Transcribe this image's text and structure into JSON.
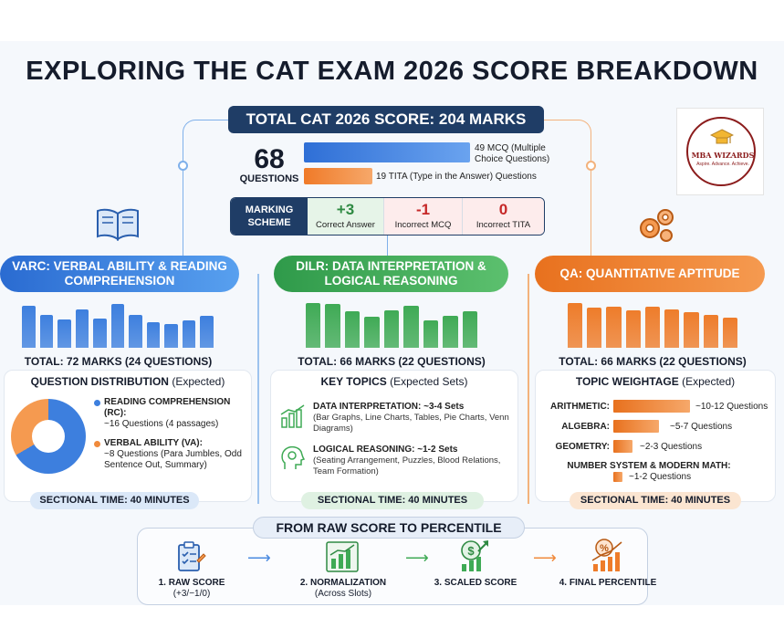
{
  "title": "EXPLORING THE CAT EXAM 2026 SCORE BREAKDOWN",
  "total": {
    "label": "TOTAL CAT 2026 SCORE: 204 MARKS",
    "question_count": "68",
    "question_label": "QUESTIONS",
    "mcq_text": "49 MCQ (Multiple Choice Questions)",
    "tita_text": "19 TITA (Type in the Answer) Questions",
    "mcq_count": 49,
    "tita_count": 19
  },
  "marking": {
    "head": "MARKING SCHEME",
    "correct": {
      "value": "+3",
      "label": "Correct Answer"
    },
    "incorrect_mcq": {
      "value": "-1",
      "label": "Incorrect MCQ"
    },
    "incorrect_tita": {
      "value": "0",
      "label": "Incorrect TITA"
    }
  },
  "logo": {
    "name": "MBA WIZARDS",
    "tagline": "Aspire. Advance. Achieve."
  },
  "varc": {
    "title": "VARC: VERBAL ABILITY & READING COMPREHENSION",
    "bar_levels": [
      0.92,
      0.72,
      0.62,
      0.84,
      0.64,
      0.95,
      0.72,
      0.55,
      0.52,
      0.6,
      0.7
    ],
    "total": "TOTAL: 72 MARKS (24 QUESTIONS)",
    "card_head": "QUESTION DISTRIBUTION",
    "card_note": "(Expected)",
    "donut_rc_fraction": 0.667,
    "rc_title": "READING COMPREHENSION (RC):",
    "rc_sub": "~16 Questions (4 passages)",
    "va_title": "VERBAL ABILITY (VA):",
    "va_sub": "~8 Questions (Para Jumbles, Odd Sentence Out, Summary)",
    "time": "SECTIONAL TIME: 40 MINUTES",
    "color": "#3d7fde"
  },
  "dilr": {
    "title": "DILR: DATA INTERPRETATION & LOGICAL REASONING",
    "bar_levels": [
      0.98,
      0.95,
      0.8,
      0.68,
      0.82,
      0.92,
      0.6,
      0.7,
      0.8
    ],
    "total": "TOTAL: 66 MARKS (22 QUESTIONS)",
    "card_head": "KEY TOPICS",
    "card_note": "(Expected Sets)",
    "di_title": "DATA INTERPRETATION: ~3-4 Sets",
    "di_sub": "(Bar Graphs, Line Charts, Tables, Pie Charts, Venn Diagrams)",
    "lr_title": "LOGICAL REASONING: ~1-2 Sets",
    "lr_sub": "(Seating Arrangement, Puzzles, Blood Relations, Team Formation)",
    "time": "SECTIONAL TIME: 40 MINUTES",
    "color": "#3faa55"
  },
  "qa": {
    "title": "QA: QUANTITATIVE APTITUDE",
    "bar_levels": [
      0.98,
      0.88,
      0.9,
      0.82,
      0.9,
      0.84,
      0.78,
      0.72,
      0.66
    ],
    "total": "TOTAL: 66 MARKS (22 QUESTIONS)",
    "card_head": "TOPIC WEIGHTAGE",
    "card_note": "(Expected)",
    "topics": [
      {
        "label": "ARITHMETIC:",
        "value": "~10-12 Questions",
        "level": 1.0
      },
      {
        "label": "ALGEBRA:",
        "value": "~5-7 Questions",
        "level": 0.6
      },
      {
        "label": "GEOMETRY:",
        "value": "~2-3 Questions",
        "level": 0.25
      }
    ],
    "nsm_label": "NUMBER SYSTEM & MODERN MATH:",
    "nsm_value": "~1-2 Questions",
    "nsm_level": 0.12,
    "time": "SECTIONAL TIME: 40 MINUTES",
    "color": "#ee7c2a"
  },
  "flow": {
    "title": "FROM RAW SCORE TO PERCENTILE",
    "steps": [
      {
        "label": "1. RAW SCORE",
        "sub": "(+3/−1/0)"
      },
      {
        "label": "2. NORMALIZATION",
        "sub": "(Across Slots)"
      },
      {
        "label": "3. SCALED SCORE",
        "sub": ""
      },
      {
        "label": "4. FINAL PERCENTILE",
        "sub": ""
      }
    ]
  }
}
